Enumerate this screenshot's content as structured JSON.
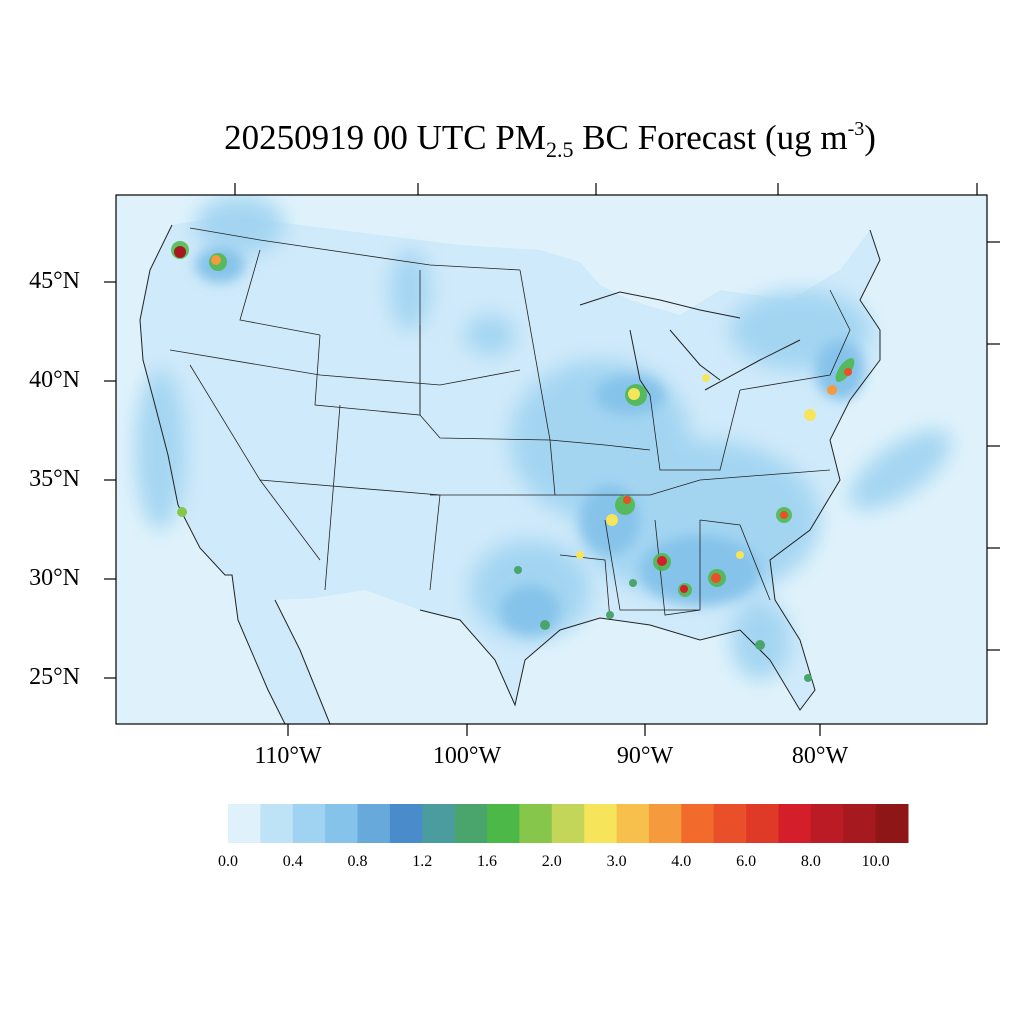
{
  "map": {
    "title_main": "20250919 00 UTC PM",
    "title_sub": "2.5",
    "title_mid": " BC Forecast (ug m",
    "title_sup": "-3",
    "title_end": ")",
    "lat_labels": [
      "45°N",
      "40°N",
      "35°N",
      "30°N",
      "25°N"
    ],
    "lon_labels": [
      "110°W",
      "100°W",
      "90°W",
      "80°W"
    ],
    "colors": {
      "ocean": "#dff2fb",
      "land_base": "#cfeafa",
      "land_mid": "#b9e0f6",
      "plume": "#9fd3f1",
      "plume_dark": "#86c3ea",
      "border": "#222222"
    }
  },
  "colorbar": {
    "colors": [
      "#dff2fb",
      "#bfe3f6",
      "#9fd3f1",
      "#86c3ea",
      "#68a9dc",
      "#4a8ccb",
      "#4b9c9e",
      "#4aa56d",
      "#4cb847",
      "#86c64b",
      "#c4d65a",
      "#f6e55a",
      "#f7bf4c",
      "#f59a3d",
      "#f26a2c",
      "#e9502a",
      "#df3a27",
      "#d41f2a",
      "#bb1b25",
      "#a61a1f",
      "#8e1616"
    ],
    "labels": [
      "0.0",
      "0.4",
      "0.8",
      "1.2",
      "1.6",
      "2.0",
      "3.0",
      "4.0",
      "6.0",
      "8.0",
      "10.0"
    ]
  },
  "hotspots": [
    {
      "name": "seattle",
      "level": 10.0
    },
    {
      "name": "spokane",
      "level": 4.0
    },
    {
      "name": "chicago",
      "level": 3.0
    },
    {
      "name": "new-york",
      "level": 6.0
    },
    {
      "name": "memphis",
      "level": 6.0
    },
    {
      "name": "birmingham",
      "level": 8.0
    },
    {
      "name": "atlanta",
      "level": 6.0
    },
    {
      "name": "mobile",
      "level": 8.0
    },
    {
      "name": "charlotte",
      "level": 6.0
    },
    {
      "name": "los-angeles",
      "level": 2.0
    },
    {
      "name": "jackson",
      "level": 3.0
    },
    {
      "name": "houston",
      "level": 1.6
    },
    {
      "name": "tampa",
      "level": 1.6
    },
    {
      "name": "miami",
      "level": 1.6
    },
    {
      "name": "washington-dc",
      "level": 3.0
    },
    {
      "name": "philadelphia",
      "level": 4.0
    }
  ]
}
